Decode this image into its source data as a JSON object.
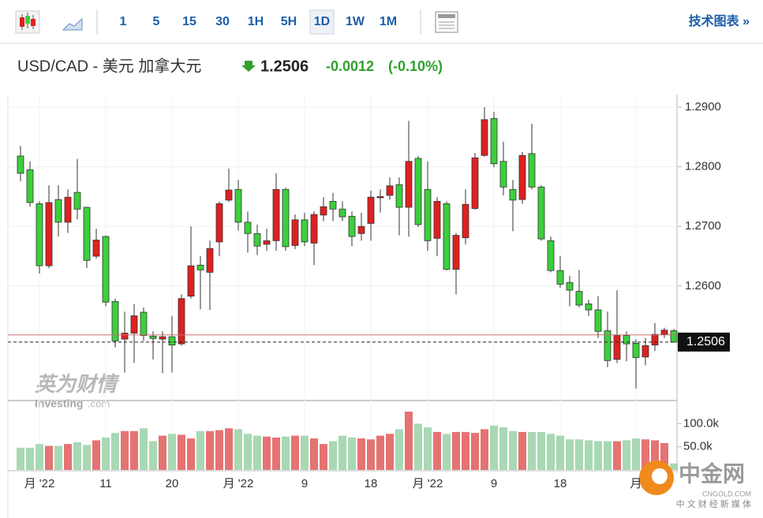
{
  "toolbar": {
    "intervals": [
      "1",
      "5",
      "15",
      "30",
      "1H",
      "5H",
      "1D",
      "1W",
      "1M"
    ],
    "selected": 6,
    "link": "技术图表 »"
  },
  "quote": {
    "name": "USD/CAD - 美元 加拿大元",
    "price": 1.2506,
    "change": -0.0012,
    "change_percent": "(-0.10%)"
  },
  "chart_data": {
    "type": "candlestick",
    "categories": [
      null,
      null,
      "月 '22",
      null,
      null,
      null,
      null,
      null,
      null,
      "11",
      null,
      null,
      null,
      null,
      null,
      null,
      "20",
      null,
      null,
      null,
      null,
      null,
      null,
      "月 '22",
      null,
      null,
      null,
      null,
      null,
      null,
      "9",
      null,
      null,
      null,
      null,
      null,
      null,
      "18",
      null,
      null,
      null,
      null,
      null,
      "月 '22",
      null,
      null,
      null,
      null,
      null,
      null,
      "9",
      null,
      null,
      null,
      null,
      null,
      null,
      "18",
      null,
      null,
      null,
      null,
      null,
      null,
      null,
      "月",
      null,
      null,
      null,
      null
    ],
    "open": [
      1.2818,
      1.2795,
      1.2738,
      1.2634,
      1.2745,
      1.2707,
      1.2757,
      1.2732,
      1.265,
      1.2683,
      1.2574,
      1.2511,
      1.2521,
      1.2556,
      1.2516,
      1.2511,
      1.2515,
      1.2503,
      1.2583,
      1.2635,
      1.2623,
      1.2674,
      1.2744,
      1.2762,
      1.2707,
      1.2688,
      1.267,
      1.2676,
      1.2762,
      1.2668,
      1.2711,
      1.2672,
      1.2719,
      1.2742,
      1.2729,
      1.2717,
      1.2688,
      1.2705,
      1.2748,
      1.2752,
      1.277,
      1.2732,
      1.2814,
      1.2762,
      1.268,
      1.2738,
      1.2628,
      1.2681,
      1.273,
      1.2819,
      1.2881,
      1.2809,
      1.2762,
      1.2745,
      1.2822,
      1.2766,
      1.2676,
      1.2626,
      1.2606,
      1.2591,
      1.257,
      1.256,
      1.2525,
      1.2477,
      1.2517,
      1.2504,
      1.2481,
      1.2501,
      1.2519,
      1.2525
    ],
    "high": [
      1.2835,
      1.2809,
      1.2742,
      1.2769,
      1.2769,
      1.2762,
      1.2813,
      1.2733,
      1.2696,
      1.2685,
      1.2579,
      1.2557,
      1.257,
      1.2564,
      1.2524,
      1.2524,
      1.255,
      1.2586,
      1.27,
      1.265,
      1.2676,
      1.2742,
      1.2797,
      1.2778,
      1.2725,
      1.2703,
      1.2696,
      1.2789,
      1.2765,
      1.272,
      1.2723,
      1.2725,
      1.2749,
      1.2756,
      1.2742,
      1.2725,
      1.2723,
      1.276,
      1.2762,
      1.2782,
      1.2782,
      1.2877,
      1.2818,
      1.2809,
      1.2749,
      1.2742,
      1.2689,
      1.2762,
      1.2823,
      1.29,
      1.2892,
      1.2842,
      1.2778,
      1.2825,
      1.2872,
      1.2769,
      1.2683,
      1.265,
      1.2617,
      1.2627,
      1.2577,
      1.2583,
      1.2557,
      1.2593,
      1.2524,
      1.2511,
      1.2513,
      1.2538,
      1.253,
      1.2528
    ],
    "low": [
      1.2776,
      1.2733,
      1.2621,
      1.263,
      1.2683,
      1.2689,
      1.2712,
      1.263,
      1.2646,
      1.2566,
      1.2497,
      1.2455,
      1.2471,
      1.2508,
      1.2477,
      1.2454,
      1.2455,
      1.25,
      1.2579,
      1.2561,
      1.256,
      1.265,
      1.2741,
      1.2693,
      1.2656,
      1.2652,
      1.2659,
      1.2659,
      1.2659,
      1.2662,
      1.2667,
      1.2635,
      1.2709,
      1.2709,
      1.2709,
      1.2667,
      1.2676,
      1.2676,
      1.2723,
      1.2745,
      1.2685,
      1.2683,
      1.2699,
      1.2659,
      1.265,
      1.2626,
      1.2586,
      1.267,
      1.2728,
      1.2817,
      1.2799,
      1.2752,
      1.2692,
      1.2738,
      1.2762,
      1.2676,
      1.2623,
      1.2597,
      1.2566,
      1.2564,
      1.255,
      1.2513,
      1.2464,
      1.2471,
      1.2474,
      1.2428,
      1.2467,
      1.2491,
      1.2513,
      1.2506
    ],
    "close": [
      1.2789,
      1.274,
      1.2634,
      1.274,
      1.2707,
      1.2749,
      1.2729,
      1.2643,
      1.2677,
      1.2573,
      1.2508,
      1.2521,
      1.255,
      1.2517,
      1.2512,
      1.2515,
      1.2501,
      1.2579,
      1.2634,
      1.2627,
      1.2663,
      1.2738,
      1.2761,
      1.2707,
      1.2688,
      1.2667,
      1.2676,
      1.2762,
      1.2666,
      1.2711,
      1.2674,
      1.272,
      1.2733,
      1.2729,
      1.2716,
      1.2683,
      1.27,
      1.2749,
      1.275,
      1.2768,
      1.2732,
      1.2809,
      1.2703,
      1.2676,
      1.2742,
      1.2628,
      1.2685,
      1.2737,
      1.2815,
      1.2879,
      1.2805,
      1.2766,
      1.2744,
      1.2819,
      1.2766,
      1.2679,
      1.2626,
      1.2603,
      1.2593,
      1.2568,
      1.256,
      1.2524,
      1.2475,
      1.2517,
      1.2503,
      1.248,
      1.25,
      1.2519,
      1.2526,
      1.2506
    ],
    "volume": [
      48000,
      48000,
      56000,
      52000,
      52000,
      56000,
      60000,
      54000,
      64000,
      70000,
      80000,
      84000,
      84000,
      90000,
      62000,
      74000,
      78000,
      76000,
      68000,
      84000,
      84000,
      86000,
      90000,
      88000,
      78000,
      74000,
      72000,
      70000,
      72000,
      74000,
      74000,
      68000,
      56000,
      62000,
      74000,
      70000,
      68000,
      66000,
      74000,
      78000,
      88000,
      126000,
      100000,
      92000,
      82000,
      78000,
      82000,
      82000,
      80000,
      88000,
      96000,
      92000,
      84000,
      82000,
      82000,
      82000,
      78000,
      74000,
      66000,
      66000,
      64000,
      62000,
      62000,
      62000,
      64000,
      68000,
      66000,
      64000,
      58000,
      14000
    ],
    "up_color": "#e02020",
    "down_color": "#3ccf3c",
    "volume_up_color": "#e57373",
    "volume_down_color": "#a8d8b4",
    "previous_close": 1.2518,
    "ylim": [
      1.2408,
      1.2921
    ],
    "yticks": [
      {
        "value": 1.26,
        "label": "1.2600"
      },
      {
        "value": 1.27,
        "label": "1.2700"
      },
      {
        "value": 1.28,
        "label": "1.2800"
      },
      {
        "value": 1.29,
        "label": "1.2900"
      }
    ],
    "y2lim": [
      0,
      150000
    ],
    "y2ticks": [
      {
        "value": 50000,
        "label": "50.0k"
      },
      {
        "value": 100000,
        "label": "100.0k"
      }
    ]
  },
  "watermarks": {
    "investing_cn": "英为财情",
    "investing": "Investing",
    "investing_domain": ".com",
    "cngold": "中金网",
    "cngold_domain": "CNGOLD.COM",
    "cngold_tagline": "中 文 财 经 新 媒 体"
  }
}
